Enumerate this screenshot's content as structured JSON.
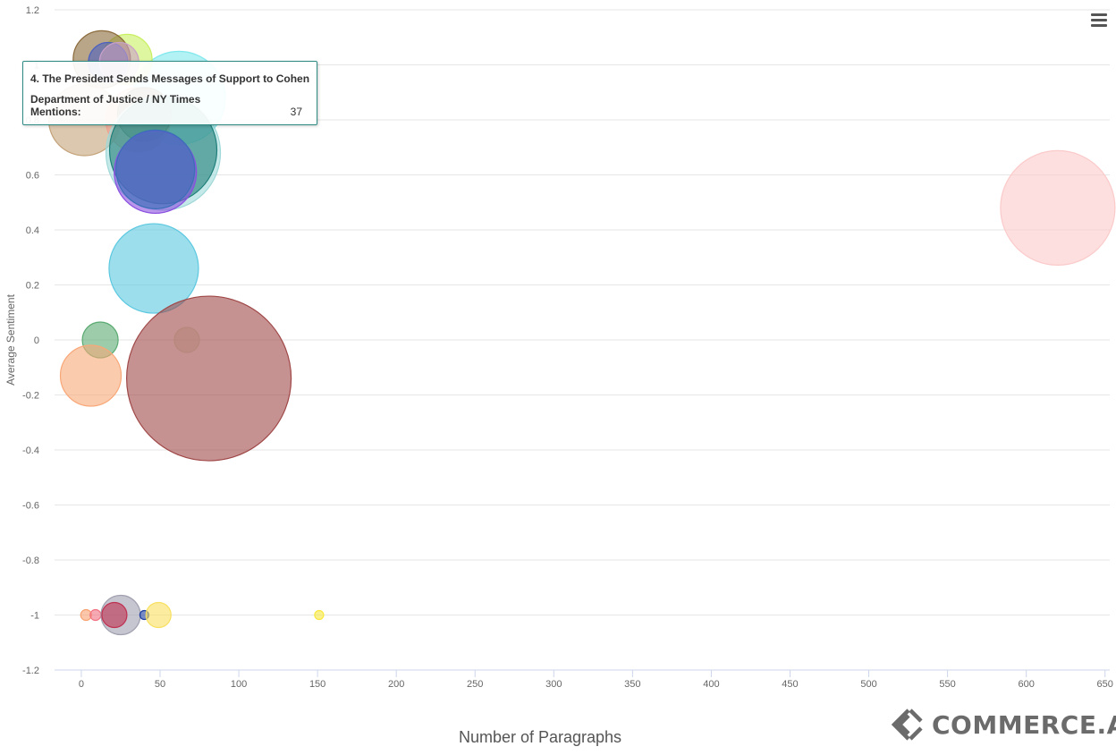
{
  "chart_data": {
    "type": "scatter",
    "subtype": "bubble",
    "xlabel": "Number of Paragraphs",
    "ylabel": "Average Sentiment",
    "xlim": [
      -17,
      653
    ],
    "ylim": [
      -1.2,
      1.2
    ],
    "xticks": [
      0,
      50,
      100,
      150,
      200,
      250,
      300,
      350,
      400,
      450,
      500,
      550,
      600,
      650
    ],
    "yticks": [
      1.2,
      1,
      0.8,
      0.6,
      0.4,
      0.2,
      0,
      -0.2,
      -0.4,
      -0.6,
      -0.8,
      -1,
      -1.2
    ],
    "ytick_labels": [
      "1.2",
      "1",
      "0.8",
      "0.6",
      "0.4",
      "0.2",
      "0",
      "-0.2",
      "-0.4",
      "-0.6",
      "-0.8",
      "-1",
      "-1.2"
    ],
    "grid": true,
    "points": [
      {
        "x": 62,
        "y": 0.88,
        "size": 52,
        "color": "#7fe8ec"
      },
      {
        "x": 29,
        "y": 1.02,
        "size": 28,
        "color": "#c8f060"
      },
      {
        "x": 13,
        "y": 1.02,
        "size": 32,
        "color": "#8b6a3a"
      },
      {
        "x": 17,
        "y": 1.01,
        "size": 22,
        "color": "#4a5fc0"
      },
      {
        "x": 24,
        "y": 1.01,
        "size": 22,
        "color": "#c9a0c8"
      },
      {
        "x": 2,
        "y": 0.8,
        "size": 40,
        "color": "#c4a37a"
      },
      {
        "x": 36,
        "y": 0.8,
        "size": 36,
        "color": "#f0a090"
      },
      {
        "x": 40,
        "y": 0.82,
        "size": 30,
        "color": "#5a5a3a"
      },
      {
        "x": 52,
        "y": 0.68,
        "size": 64,
        "color": "#9fd8d8"
      },
      {
        "x": 52,
        "y": 0.69,
        "size": 60,
        "color": "#1f7f7a"
      },
      {
        "x": 47,
        "y": 0.61,
        "size": 46,
        "color": "#8a4fe0"
      },
      {
        "x": 47,
        "y": 0.62,
        "size": 44,
        "color": "#3a6fb8"
      },
      {
        "x": 46,
        "y": 0.26,
        "size": 50,
        "color": "#5cc8e0"
      },
      {
        "x": 12,
        "y": 0.0,
        "size": 20,
        "color": "#5aaa72"
      },
      {
        "x": 67,
        "y": 0.0,
        "size": 14,
        "color": "#d8e8c8"
      },
      {
        "x": 6,
        "y": -0.13,
        "size": 34,
        "color": "#f8a878"
      },
      {
        "x": 81,
        "y": -0.14,
        "size": 92,
        "color": "#a04848"
      },
      {
        "x": 620,
        "y": 0.48,
        "size": 64,
        "color": "#fbcaca"
      },
      {
        "x": 3,
        "y": -1.0,
        "size": 6,
        "color": "#f8a070"
      },
      {
        "x": 9,
        "y": -1.0,
        "size": 6,
        "color": "#f07080"
      },
      {
        "x": 25,
        "y": -1.0,
        "size": 22,
        "color": "#a0a0b0"
      },
      {
        "x": 21,
        "y": -1.0,
        "size": 14,
        "color": "#c03050"
      },
      {
        "x": 40,
        "y": -1.0,
        "size": 5,
        "color": "#2040a0"
      },
      {
        "x": 49,
        "y": -1.0,
        "size": 14,
        "color": "#f8e060"
      },
      {
        "x": 151,
        "y": -1.0,
        "size": 5,
        "color": "#f8e840"
      }
    ]
  },
  "tooltip": {
    "title": "4. The President Sends Messages of Support to Cohen",
    "source": "Department of Justice / NY Times",
    "label": "Mentions:",
    "value": "37"
  },
  "menu": {
    "icon": "hamburger-menu-icon"
  },
  "logo": {
    "text": "COMMERCE.AI",
    "icon": "commerce-ai-logo-icon"
  }
}
